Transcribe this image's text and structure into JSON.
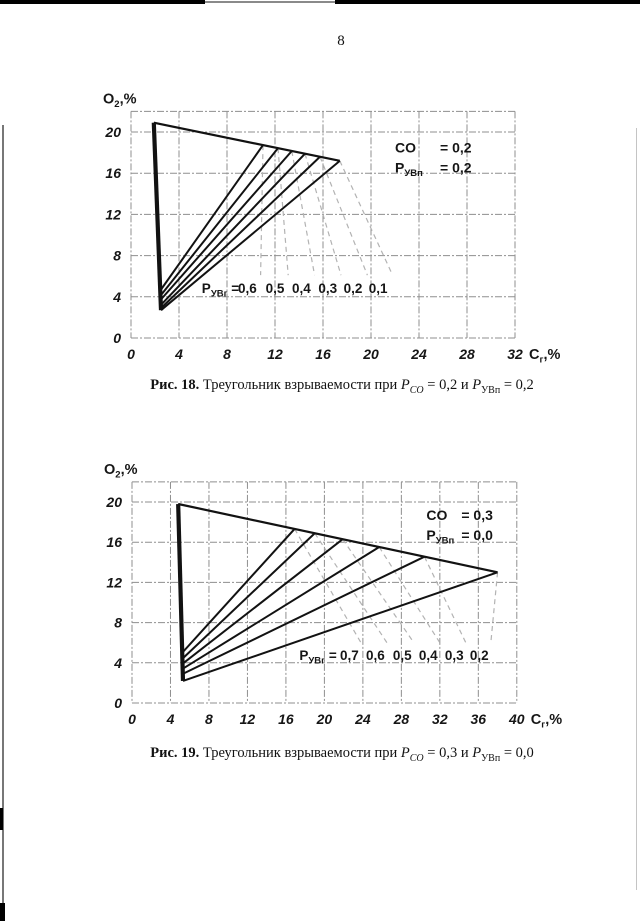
{
  "page": {
    "number": "8"
  },
  "figures": [
    {
      "caption": {
        "label": "Рис. 18.",
        "body": " Треугольник взрываемости при ",
        "var1": "P",
        "var1_sub": "CO",
        "seg1": " = 0,2 и ",
        "var2": "P",
        "var2_sub": "УВп",
        "seg2": " = 0,2"
      }
    },
    {
      "caption": {
        "label": "Рис. 19.",
        "body": " Треугольник взрываемости при ",
        "var1": "P",
        "var1_sub": "CO",
        "seg1": " = 0,3 и ",
        "var2": "P",
        "var2_sub": "УВп",
        "seg2": " = 0,0"
      }
    }
  ],
  "chart_data": [
    {
      "type": "line",
      "title": "Треугольник взрываемости при P_CO = 0,2 и P_УВп = 0,2",
      "xlabel": {
        "main": "C",
        "sub": "г",
        "rest": ",%"
      },
      "ylabel": {
        "main": "O",
        "sub": "2",
        "rest": ",%"
      },
      "x_ticks": [
        0,
        4,
        8,
        12,
        16,
        20,
        24,
        28,
        32
      ],
      "y_ticks": [
        0,
        4,
        8,
        12,
        16,
        20
      ],
      "xlim": [
        0,
        32
      ],
      "ylim": [
        0,
        22
      ],
      "grid": true,
      "legend": "none",
      "triangle": {
        "apex_top": [
          1.9,
          20.9
        ],
        "apex_bottom": [
          2.5,
          2.7
        ],
        "main_tip": [
          17.4,
          17.2
        ]
      },
      "fan_tips_x": [
        11.0,
        12.25,
        13.4,
        14.5,
        15.75,
        17.4
      ],
      "fan_bottoms_y": [
        4.6,
        4.1,
        3.7,
        3.2,
        2.9,
        2.7
      ],
      "fan_values": [
        "0,6",
        "0,5",
        "0,4",
        "0,3",
        "0,2",
        "0,1"
      ],
      "fan_value_centers_x": [
        9.7,
        12.0,
        14.2,
        16.4,
        18.5,
        20.6
      ],
      "fan_label_y": 4.85,
      "fan_label_prefix": {
        "main": "Р",
        "sub": "УВг",
        "rest": " ="
      },
      "fan_label_prefix_x": 5.9,
      "leader_ends_x": [
        10.8,
        13.1,
        15.3,
        17.5,
        19.7,
        21.8
      ],
      "leader_end_y": 6.1,
      "annotation": {
        "pos": [
          22.0,
          18.0
        ],
        "lines": [
          {
            "main": "CO",
            "sub": "",
            "eq": "= 0,2"
          },
          {
            "main": "Р",
            "sub": "УВп",
            "eq": "= 0,2"
          }
        ]
      },
      "colors": {
        "grid": "#8f8f8f",
        "line": "#121212",
        "leader": "#b3b3b3",
        "text": "#111111"
      }
    },
    {
      "type": "line",
      "title": "Треугольник взрываемости при P_CO = 0,3 и P_УВп = 0,0",
      "xlabel": {
        "main": "C",
        "sub": "г",
        "rest": ",%"
      },
      "ylabel": {
        "main": "O",
        "sub": "2",
        "rest": ",%"
      },
      "x_ticks": [
        0,
        4,
        8,
        12,
        16,
        20,
        24,
        28,
        32,
        36,
        40
      ],
      "y_ticks": [
        0,
        4,
        8,
        12,
        16,
        20
      ],
      "xlim": [
        0,
        40
      ],
      "ylim": [
        0,
        22
      ],
      "grid": true,
      "legend": "none",
      "triangle": {
        "apex_top": [
          4.8,
          19.8
        ],
        "apex_bottom": [
          5.3,
          2.2
        ],
        "main_tip": [
          38.0,
          13.0
        ]
      },
      "fan_tips_x": [
        16.9,
        19.0,
        21.9,
        25.7,
        30.4,
        38.0
      ],
      "fan_bottoms_y": [
        5.0,
        4.4,
        3.9,
        3.4,
        2.9,
        2.2
      ],
      "fan_values": [
        "0,7",
        "0,6",
        "0,5",
        "0,4",
        "0,3",
        "0,2"
      ],
      "fan_value_centers_x": [
        22.6,
        25.3,
        28.1,
        30.8,
        33.5,
        36.1
      ],
      "fan_label_y": 4.8,
      "fan_label_prefix": {
        "main": "Р",
        "sub": "УВг",
        "rest": " ="
      },
      "fan_label_prefix_x": 17.4,
      "leader_ends_x": [
        23.8,
        26.5,
        29.3,
        32.0,
        34.7,
        37.3
      ],
      "leader_end_y": 6.0,
      "annotation": {
        "pos": [
          30.6,
          18.2
        ],
        "lines": [
          {
            "main": "CO",
            "sub": "",
            "eq": "= 0,3"
          },
          {
            "main": "Р",
            "sub": "УВп",
            "eq": "= 0,0"
          }
        ]
      },
      "colors": {
        "grid": "#8f8f8f",
        "line": "#121212",
        "leader": "#b3b3b3",
        "text": "#111111"
      }
    }
  ]
}
